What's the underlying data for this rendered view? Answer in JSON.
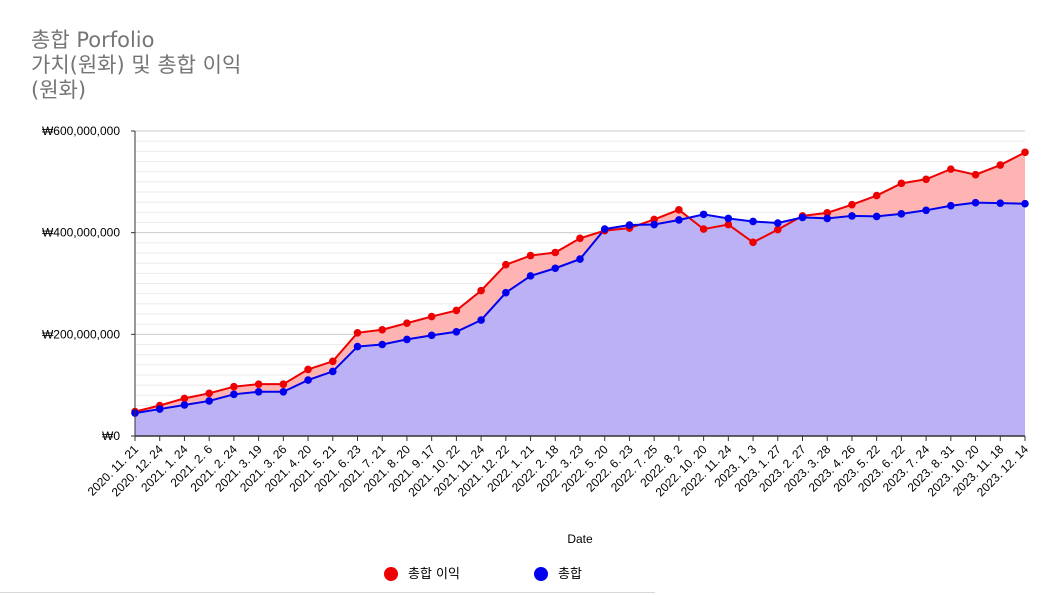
{
  "chart_data": {
    "type": "area",
    "title": "총합 Porfolio\n가치(원화) 및 총합 이익\n(원화)",
    "xlabel": "Date",
    "ylabel": "",
    "ylim": [
      0,
      600000000
    ],
    "y_ticks": [
      "₩0",
      "₩200,000,000",
      "₩400,000,000",
      "₩600,000,000"
    ],
    "y_tick_values": [
      0,
      200000000,
      400000000,
      600000000
    ],
    "grid": true,
    "legend_position": "bottom",
    "x_tick_labels": [
      "2020. 11. 21",
      "2020. 12. 24",
      "2021. 1. 24",
      "2021. 2. 6",
      "2021. 2. 24",
      "2021. 3. 19",
      "2021. 3. 26",
      "2021. 4. 20",
      "2021. 5. 21",
      "2021. 6. 23",
      "2021. 7. 21",
      "2021. 8. 20",
      "2021. 9. 17",
      "2021. 10. 22",
      "2021. 11. 24",
      "2021. 12. 22",
      "2022. 1. 21",
      "2022. 2. 18",
      "2022. 3. 23",
      "2022. 5. 20",
      "2022. 6. 23",
      "2022. 7. 25",
      "2022. 8. 2",
      "2022. 10. 20",
      "2022. 11. 24",
      "2023. 1. 3",
      "2023. 1. 27",
      "2023. 2. 27",
      "2023. 3. 28",
      "2023. 4. 26",
      "2023. 5. 22",
      "2023. 6. 22",
      "2023. 7. 24",
      "2023. 8. 31",
      "2023. 10. 20",
      "2023. 11. 18",
      "2023. 12. 14"
    ],
    "series": [
      {
        "name": "총합 이익",
        "color": "#ee0000",
        "fill": "#ffb0b0",
        "values": [
          48000000,
          60000000,
          74000000,
          84000000,
          97000000,
          102000000,
          102000000,
          131000000,
          147000000,
          203000000,
          209000000,
          222000000,
          235000000,
          247000000,
          286000000,
          337000000,
          355000000,
          361000000,
          389000000,
          404000000,
          409000000,
          426000000,
          445000000,
          407000000,
          416000000,
          381000000,
          406000000,
          433000000,
          439000000,
          455000000,
          473000000,
          497000000,
          505000000,
          525000000,
          514000000,
          533000000,
          558000000
        ]
      },
      {
        "name": "총합",
        "color": "#0000ee",
        "fill": "#b0b0ff",
        "values": [
          45000000,
          53000000,
          61000000,
          69000000,
          82000000,
          87000000,
          87000000,
          110000000,
          127000000,
          176000000,
          180000000,
          190000000,
          198000000,
          205000000,
          228000000,
          282000000,
          315000000,
          330000000,
          348000000,
          407000000,
          415000000,
          416000000,
          425000000,
          436000000,
          428000000,
          422000000,
          419000000,
          430000000,
          428000000,
          433000000,
          432000000,
          437000000,
          444000000,
          453000000,
          459000000,
          458000000,
          457000000
        ]
      }
    ]
  }
}
